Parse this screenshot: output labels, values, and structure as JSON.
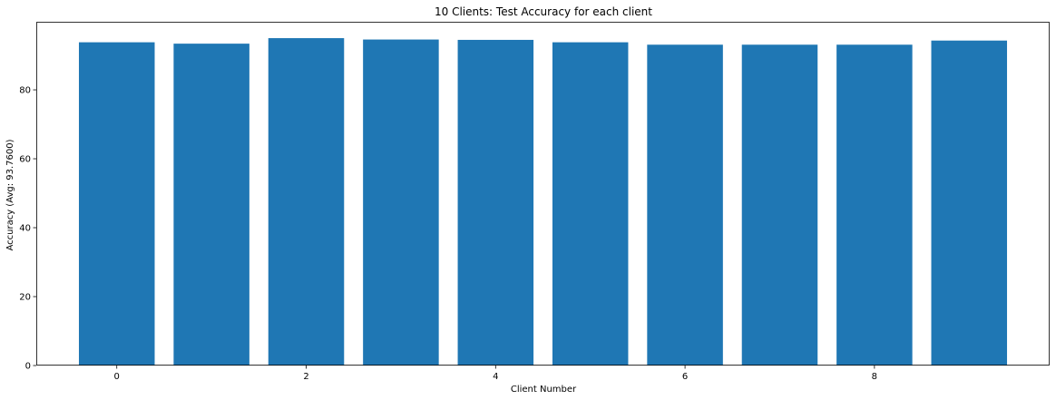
{
  "chart_data": {
    "type": "bar",
    "title": "10 Clients: Test Accuracy for each client",
    "xlabel": "Client Number",
    "ylabel": "Accuracy (Avg: 93.7600)",
    "x": [
      0,
      1,
      2,
      3,
      4,
      5,
      6,
      7,
      8,
      9
    ],
    "values": [
      93.8,
      93.4,
      95.0,
      94.6,
      94.5,
      93.8,
      93.1,
      93.1,
      93.1,
      94.3
    ],
    "xlim": [
      -0.85,
      9.85
    ],
    "ylim": [
      0,
      99.75
    ],
    "xticks": [
      0,
      2,
      4,
      6,
      8
    ],
    "xtick_labels": [
      "0",
      "2",
      "4",
      "6",
      "8"
    ],
    "yticks": [
      0,
      20,
      40,
      60,
      80
    ],
    "ytick_labels": [
      "0",
      "20",
      "40",
      "60",
      "80"
    ],
    "bar_color": "#1f77b4",
    "grid": false
  }
}
